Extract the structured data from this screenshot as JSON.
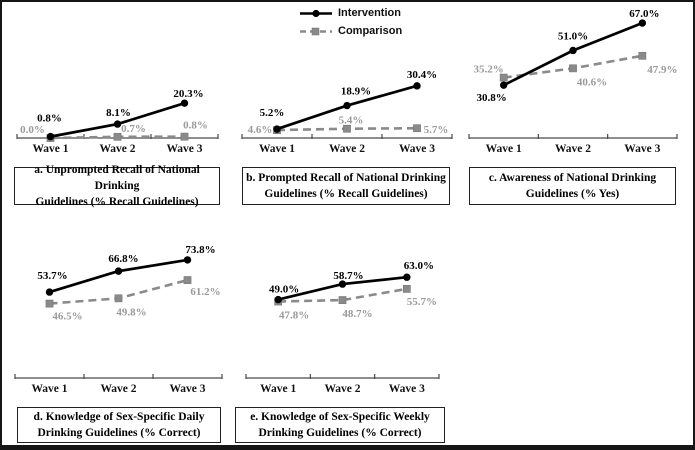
{
  "figure": {
    "legend": {
      "items": [
        {
          "label": "Intervention",
          "series": "intervention"
        },
        {
          "label": "Comparison",
          "series": "comparison"
        }
      ],
      "position": "top-center"
    },
    "colors": {
      "intervention": "#000000",
      "comparison": "#8a8a8a",
      "comparison_label": "#9a9a9a",
      "axis": "#4a4a4a"
    }
  },
  "chart_data": [
    {
      "id": "a",
      "type": "line",
      "title": "a. Unprompted Recall of National Drinking Guidelines (% Recall Guidelines)",
      "caption_line1": "a. Unprompted Recall of National Drinking",
      "caption_line2": "Guidelines (% Recall Guidelines)",
      "categories": [
        "Wave 1",
        "Wave 2",
        "Wave 3"
      ],
      "series": [
        {
          "name": "Intervention",
          "values": [
            0.8,
            8.1,
            20.3
          ],
          "labels": [
            "0.8%",
            "8.1%",
            "20.3%"
          ]
        },
        {
          "name": "Comparison",
          "values": [
            0.0,
            0.7,
            0.8
          ],
          "labels": [
            "0.0%",
            "0.7%",
            "0.8%"
          ]
        }
      ],
      "xlabel": "",
      "ylabel": "",
      "ylim": [
        0,
        74
      ],
      "grid": false,
      "legend_position": "shared top-center"
    },
    {
      "id": "b",
      "type": "line",
      "title": "b. Prompted Recall of National Drinking Guidelines (% Recall Guidelines)",
      "caption_line1": "b. Prompted Recall of National Drinking",
      "caption_line2": "Guidelines (% Recall Guidelines)",
      "categories": [
        "Wave 1",
        "Wave 2",
        "Wave 3"
      ],
      "series": [
        {
          "name": "Intervention",
          "values": [
            5.2,
            18.9,
            30.4
          ],
          "labels": [
            "5.2%",
            "18.9%",
            "30.4%"
          ]
        },
        {
          "name": "Comparison",
          "values": [
            4.6,
            5.4,
            5.7
          ],
          "labels": [
            "4.6%",
            "5.4%",
            "5.7%"
          ]
        }
      ],
      "xlabel": "",
      "ylabel": "",
      "ylim": [
        0,
        74
      ],
      "grid": false,
      "legend_position": "shared top-center"
    },
    {
      "id": "c",
      "type": "line",
      "title": "c. Awareness of National Drinking Guidelines (% Yes)",
      "caption_line1": "c. Awareness of National Drinking",
      "caption_line2": "Guidelines (% Yes)",
      "categories": [
        "Wave 1",
        "Wave 2",
        "Wave 3"
      ],
      "series": [
        {
          "name": "Intervention",
          "values": [
            30.8,
            51.0,
            67.0
          ],
          "labels": [
            "30.8%",
            "51.0%",
            "67.0%"
          ]
        },
        {
          "name": "Comparison",
          "values": [
            35.2,
            40.6,
            47.9
          ],
          "labels": [
            "35.2%",
            "40.6%",
            "47.9%"
          ]
        }
      ],
      "xlabel": "",
      "ylabel": "",
      "ylim": [
        0,
        74
      ],
      "grid": false,
      "legend_position": "shared top-center"
    },
    {
      "id": "d",
      "type": "line",
      "title": "d. Knowledge of Sex-Specific Daily Drinking Guidelines (% Correct)",
      "caption_line1": "d. Knowledge of Sex-Specific Daily",
      "caption_line2": "Drinking Guidelines (% Correct)",
      "categories": [
        "Wave 1",
        "Wave 2",
        "Wave 3"
      ],
      "series": [
        {
          "name": "Intervention",
          "values": [
            53.7,
            66.8,
            73.8
          ],
          "labels": [
            "53.7%",
            "66.8%",
            "73.8%"
          ]
        },
        {
          "name": "Comparison",
          "values": [
            46.5,
            49.8,
            61.2
          ],
          "labels": [
            "46.5%",
            "49.8%",
            "61.2%"
          ]
        }
      ],
      "xlabel": "",
      "ylabel": "",
      "ylim": [
        0,
        85
      ],
      "grid": false,
      "legend_position": "shared top-center"
    },
    {
      "id": "e",
      "type": "line",
      "title": "e. Knowledge of Sex-Specific Weekly Drinking Guidelines (% Correct)",
      "caption_line1": "e. Knowledge of Sex-Specific Weekly",
      "caption_line2": "Drinking Guidelines (% Correct)",
      "categories": [
        "Wave 1",
        "Wave 2",
        "Wave 3"
      ],
      "series": [
        {
          "name": "Intervention",
          "values": [
            49.0,
            58.7,
            63.0
          ],
          "labels": [
            "49.0%",
            "58.7%",
            "63.0%"
          ]
        },
        {
          "name": "Comparison",
          "values": [
            47.8,
            48.7,
            55.7
          ],
          "labels": [
            "47.8%",
            "48.7%",
            "55.7%"
          ]
        }
      ],
      "xlabel": "",
      "ylabel": "",
      "ylim": [
        0,
        85
      ],
      "grid": false,
      "legend_position": "shared top-center"
    }
  ]
}
